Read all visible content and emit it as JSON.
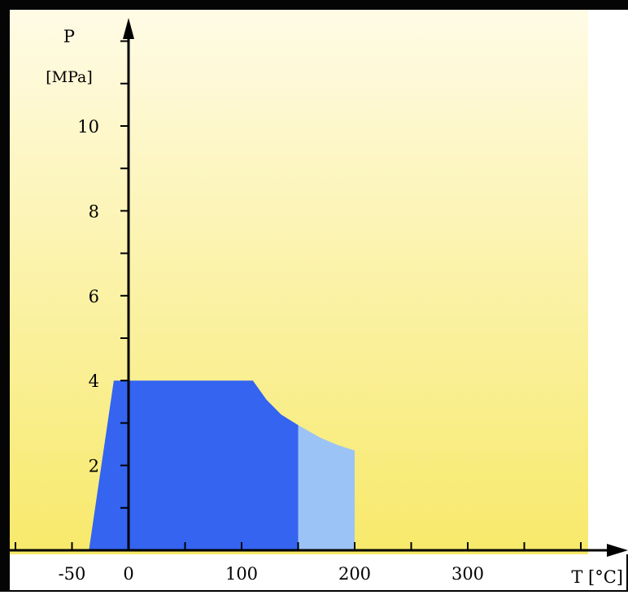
{
  "chart_data": {
    "type": "area",
    "xlabel": "T [°C]",
    "ylabel_name": "P",
    "ylabel_unit": "[MPa]",
    "x_ticks": [
      -50,
      0,
      100,
      200,
      300
    ],
    "x_tick_labels": [
      "-50",
      "0",
      "100",
      "200",
      "300"
    ],
    "x_minor_step": 50,
    "y_ticks": [
      2,
      4,
      6,
      8,
      10
    ],
    "y_tick_labels": [
      "2",
      "4",
      "6",
      "8",
      "10"
    ],
    "y_minor_step": 1,
    "xlim": [
      -100,
      440
    ],
    "ylim": [
      0,
      12.5
    ],
    "grid": false,
    "series": [
      {
        "color": "#3464f0",
        "points": [
          [
            -35,
            0
          ],
          [
            -13,
            4
          ],
          [
            110,
            4
          ],
          [
            122,
            3.55
          ],
          [
            135,
            3.2
          ],
          [
            150,
            2.95
          ],
          [
            150,
            0
          ]
        ]
      },
      {
        "color": "#9cc3f5",
        "points": [
          [
            150,
            0
          ],
          [
            150,
            2.95
          ],
          [
            170,
            2.65
          ],
          [
            185,
            2.48
          ],
          [
            200,
            2.35
          ],
          [
            200,
            0
          ]
        ]
      }
    ],
    "colors": {
      "background_top": "#fffbe6",
      "background_bottom": "#f7e96a",
      "frame": "#000000"
    }
  }
}
